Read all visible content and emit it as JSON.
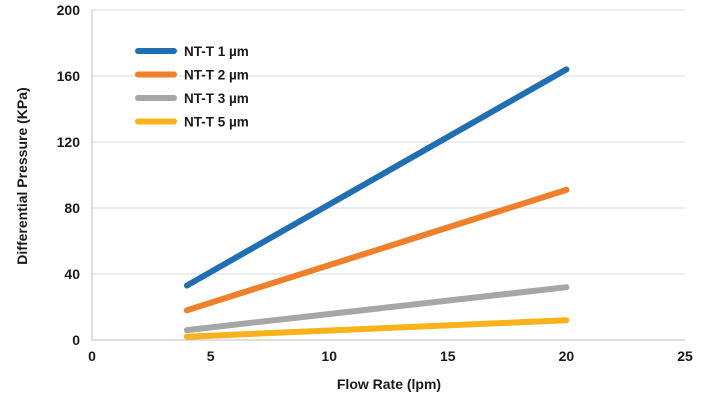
{
  "chart_data": {
    "type": "line",
    "title": "",
    "xlabel": "Flow Rate (lpm)",
    "ylabel": "Differential Pressure (KPa)",
    "xlim": [
      0,
      25
    ],
    "ylim": [
      0,
      200
    ],
    "x_ticks": [
      "0",
      "5",
      "10",
      "15",
      "20",
      "25"
    ],
    "y_ticks": [
      "0",
      "40",
      "80",
      "120",
      "160",
      "200"
    ],
    "grid": true,
    "legend_position": "top-left",
    "series": [
      {
        "name": "NT-T 1 µm",
        "color": "#1f6fb2",
        "x": [
          4,
          20
        ],
        "y": [
          33,
          164
        ]
      },
      {
        "name": "NT-T 2 µm",
        "color": "#f07f2a",
        "x": [
          4,
          20
        ],
        "y": [
          18,
          91
        ]
      },
      {
        "name": "NT-T 3 µm",
        "color": "#a6a6a6",
        "x": [
          4,
          20
        ],
        "y": [
          6,
          32
        ]
      },
      {
        "name": "NT-T 5 µm",
        "color": "#f9b21b",
        "x": [
          4,
          20
        ],
        "y": [
          2,
          12
        ]
      }
    ]
  }
}
